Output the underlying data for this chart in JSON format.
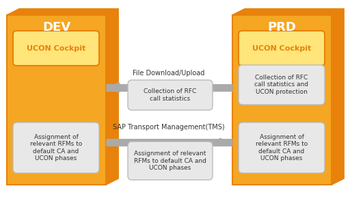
{
  "bg_color": "#ffffff",
  "orange_dark": "#E8820A",
  "orange_light": "#F5A623",
  "yellow_light": "#FFE57A",
  "box_fill": "#E8E8E8",
  "box_stroke": "#BBBBBB",
  "arrow_color": "#AAAAAA",
  "text_white": "#FFFFFF",
  "text_dark": "#333333",
  "dev_label": "DEV",
  "prd_label": "PRD",
  "ucon_label": "UCON Cockpit",
  "arrow1_label": "File Download/Upload",
  "arrow2_label": "SAP Transport Management(TMS)",
  "box1_text": "Collection of RFC\ncall statistics",
  "box2_text": "Assignment of relevant\nRFMs to default CA and\nUCON phases",
  "prd_box1_text": "Collection of RFC\ncall statistics and\nUCON protection",
  "prd_box2_text": "Assignment of\nrelevant RFMs to\ndefault CA and\nUCON phases"
}
